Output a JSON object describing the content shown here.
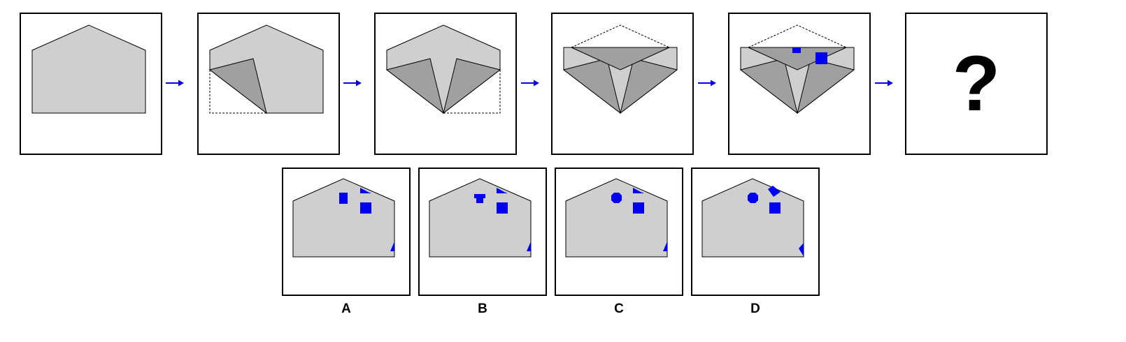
{
  "colors": {
    "paper": "#cfcfcf",
    "fold": "#a0a0a0",
    "hole": "#0000ee",
    "arrow": "#0000ee",
    "outline": "#000000"
  },
  "sequence": {
    "arrow_icon": "right-arrow-icon",
    "question_mark": "?"
  },
  "options": [
    {
      "label": "A"
    },
    {
      "label": "B"
    },
    {
      "label": "C"
    },
    {
      "label": "D"
    }
  ]
}
